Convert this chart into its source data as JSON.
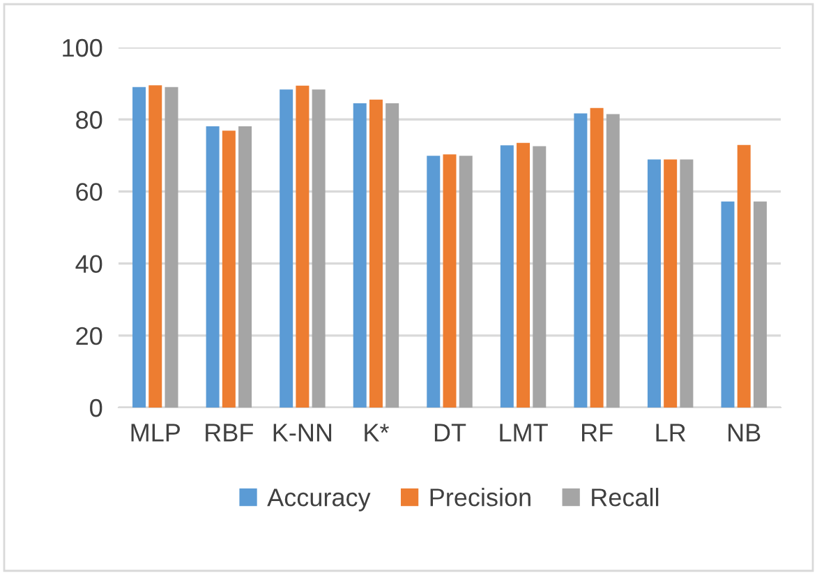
{
  "chart_data": {
    "type": "bar",
    "categories": [
      "MLP",
      "RBF",
      "K-NN",
      "K*",
      "DT",
      "LMT",
      "RF",
      "LR",
      "NB"
    ],
    "series": [
      {
        "name": "Accuracy",
        "color": "#5b9bd5",
        "values": [
          89.0,
          78.1,
          88.3,
          84.5,
          69.9,
          72.8,
          81.7,
          68.9,
          57.2
        ]
      },
      {
        "name": "Precision",
        "color": "#ed7d31",
        "values": [
          89.5,
          76.9,
          89.4,
          85.5,
          70.3,
          73.5,
          83.2,
          68.9,
          72.9
        ]
      },
      {
        "name": "Recall",
        "color": "#a5a5a5",
        "values": [
          89.0,
          78.1,
          88.3,
          84.5,
          69.9,
          72.6,
          81.5,
          68.9,
          57.2
        ]
      }
    ],
    "ylim": [
      0,
      100
    ],
    "yticks": [
      0,
      20,
      40,
      60,
      80,
      100
    ],
    "grid": "y",
    "legend": "bottom"
  }
}
